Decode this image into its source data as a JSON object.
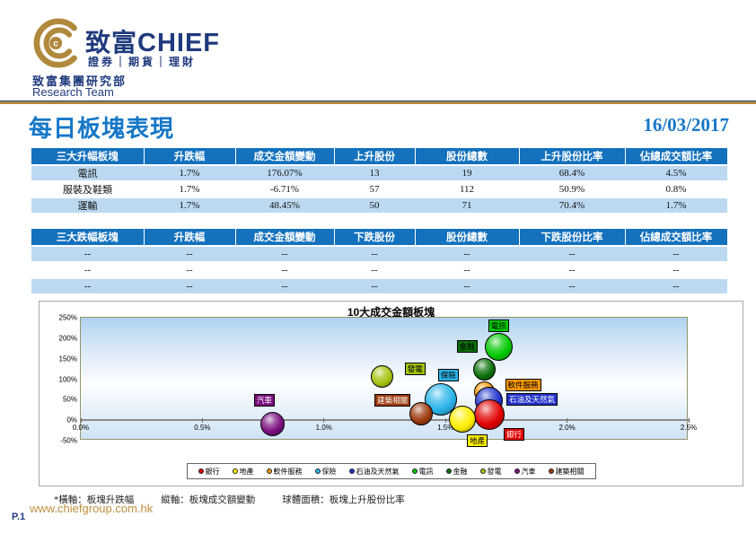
{
  "header": {
    "brand_cn": "致富",
    "brand_en": "CHIEF",
    "brand_tagline": "證券｜期貨｜理財",
    "dept_cn": "致富集團研究部",
    "dept_en": "Research Team"
  },
  "page": {
    "title": "每日板塊表現",
    "date": "16/03/2017",
    "page_number": "P.1",
    "website": "www.chiefgroup.com.hk",
    "footnote_x": "*橫軸：板塊升跌幅",
    "footnote_y": "縱軸：板塊成交額變動",
    "footnote_size": "球體面積：板塊上升股份比率"
  },
  "gainers_table": {
    "headers": [
      "三大升幅板塊",
      "升跌幅",
      "成交金額變動",
      "上升股份",
      "股份總數",
      "上升股份比率",
      "佔總成交額比率"
    ],
    "rows": [
      [
        "電訊",
        "1.7%",
        "176.07%",
        "13",
        "19",
        "68.4%",
        "4.5%"
      ],
      [
        "服裝及鞋類",
        "1.7%",
        "-6.71%",
        "57",
        "112",
        "50.9%",
        "0.8%"
      ],
      [
        "運輸",
        "1.7%",
        "48.45%",
        "50",
        "71",
        "70.4%",
        "1.7%"
      ]
    ]
  },
  "losers_table": {
    "headers": [
      "三大跌幅板塊",
      "升跌幅",
      "成交金額變動",
      "下跌股份",
      "股份總數",
      "下跌股份比率",
      "佔總成交額比率"
    ],
    "rows": [
      [
        "--",
        "--",
        "--",
        "--",
        "--",
        "--",
        "--"
      ],
      [
        "--",
        "--",
        "--",
        "--",
        "--",
        "--",
        "--"
      ],
      [
        "--",
        "--",
        "--",
        "--",
        "--",
        "--",
        "--"
      ]
    ]
  },
  "chart_data": {
    "type": "scatter",
    "subtype": "bubble",
    "title": "10大成交金額板塊",
    "xlabel": "板塊升跌幅",
    "ylabel": "板塊成交金額變動",
    "size_meaning": "板塊上升股份比率",
    "xlim": [
      0,
      2.5
    ],
    "ylim": [
      -50,
      250
    ],
    "grid": false,
    "legend_position": "bottom",
    "x_tick_values": [
      0,
      0.5,
      1.0,
      1.5,
      2.0,
      2.5
    ],
    "x_ticks": [
      "0.0%",
      "0.5%",
      "1.0%",
      "1.5%",
      "2.0%",
      "2.5%"
    ],
    "y_tick_values": [
      250,
      200,
      150,
      100,
      50,
      0,
      -50
    ],
    "y_ticks": [
      "250%",
      "200%",
      "150%",
      "100%",
      "50%",
      "0%",
      "-50%"
    ],
    "series": [
      {
        "name": "銀行",
        "x": 1.68,
        "y": 13,
        "size": 34,
        "color": "#e00000",
        "text_color": "#ffffff",
        "label_dx": 16,
        "label_dy": 15,
        "z": 8
      },
      {
        "name": "地產",
        "x": 1.57,
        "y": 2,
        "size": 30,
        "color": "#ffee00",
        "text_color": "#000000",
        "label_dx": 5,
        "label_dy": 17,
        "z": 9
      },
      {
        "name": "軟件服務",
        "x": 1.66,
        "y": 70,
        "size": 23,
        "color": "#ff9900",
        "text_color": "#000000",
        "label_dx": 23,
        "label_dy": -14,
        "z": 3
      },
      {
        "name": "保險",
        "x": 1.48,
        "y": 50,
        "size": 36,
        "color": "#2ab4ea",
        "text_color": "#000000",
        "label_dx": -3,
        "label_dy": -34,
        "z": 4
      },
      {
        "name": "石油及天然氣",
        "x": 1.68,
        "y": 47,
        "size": 31,
        "color": "#2233cc",
        "text_color": "#ffffff",
        "label_dx": 19,
        "label_dy": -9,
        "z": 5
      },
      {
        "name": "電訊",
        "x": 1.72,
        "y": 178,
        "size": 31,
        "color": "#00c800",
        "text_color": "#000000",
        "label_dx": -12,
        "label_dy": -31,
        "z": 6
      },
      {
        "name": "金融",
        "x": 1.66,
        "y": 123,
        "size": 25,
        "color": "#0a700a",
        "text_color": "#000000",
        "label_dx": -31,
        "label_dy": -33,
        "z": 7
      },
      {
        "name": "發電",
        "x": 1.24,
        "y": 107,
        "size": 25,
        "color": "#a4c40e",
        "text_color": "#000000",
        "label_dx": 25,
        "label_dy": -15,
        "z": 2
      },
      {
        "name": "汽車",
        "x": 0.79,
        "y": -10,
        "size": 27,
        "color": "#7a0e7e",
        "text_color": "#ffffff",
        "label_dx": -21,
        "label_dy": -34,
        "z": 1
      },
      {
        "name": "建築相關",
        "x": 1.4,
        "y": 16,
        "size": 26,
        "color": "#9c3a0c",
        "text_color": "#ffffff",
        "label_dx": -52,
        "label_dy": -22,
        "z": 10
      }
    ]
  },
  "colors": {
    "brand_navy": "#1f3a7d",
    "brand_gold": "#b1893c",
    "title_blue": "#1577c8",
    "table_header_blue": "#1371bd",
    "table_row_blue": "#bcd9f1",
    "gain_green": "#00a050"
  }
}
